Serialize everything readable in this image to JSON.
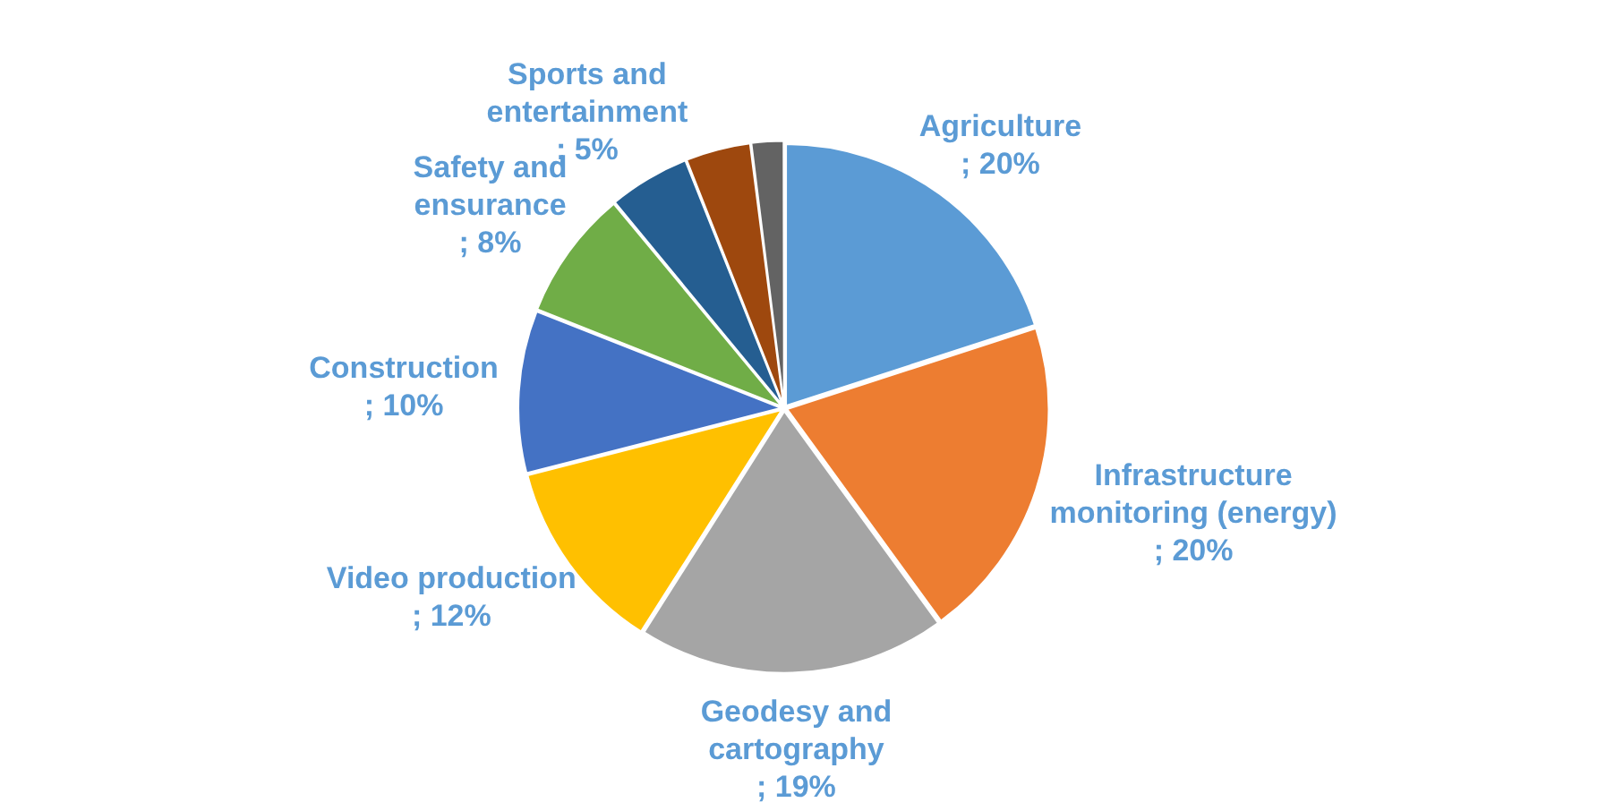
{
  "chart_data": {
    "type": "pie",
    "categories": [
      "Agriculture",
      "Infrastructure monitoring (energy)",
      "Geodesy and cartography",
      "Video production",
      "Construction",
      "Safety and ensurance",
      "Sports and entertainment",
      null,
      null
    ],
    "values": [
      20,
      20,
      19,
      12,
      10,
      8,
      5,
      4,
      2
    ],
    "value_labels": [
      "; 20%",
      "; 20%",
      "; 19%",
      "; 12%",
      "; 10%",
      "; 8%",
      "; 5%",
      null,
      null
    ],
    "colors": [
      "#5b9bd5",
      "#ed7d31",
      "#a5a5a5",
      "#ffc000",
      "#4472c4",
      "#70ad47",
      "#255e91",
      "#9e480e",
      "#636363"
    ]
  }
}
